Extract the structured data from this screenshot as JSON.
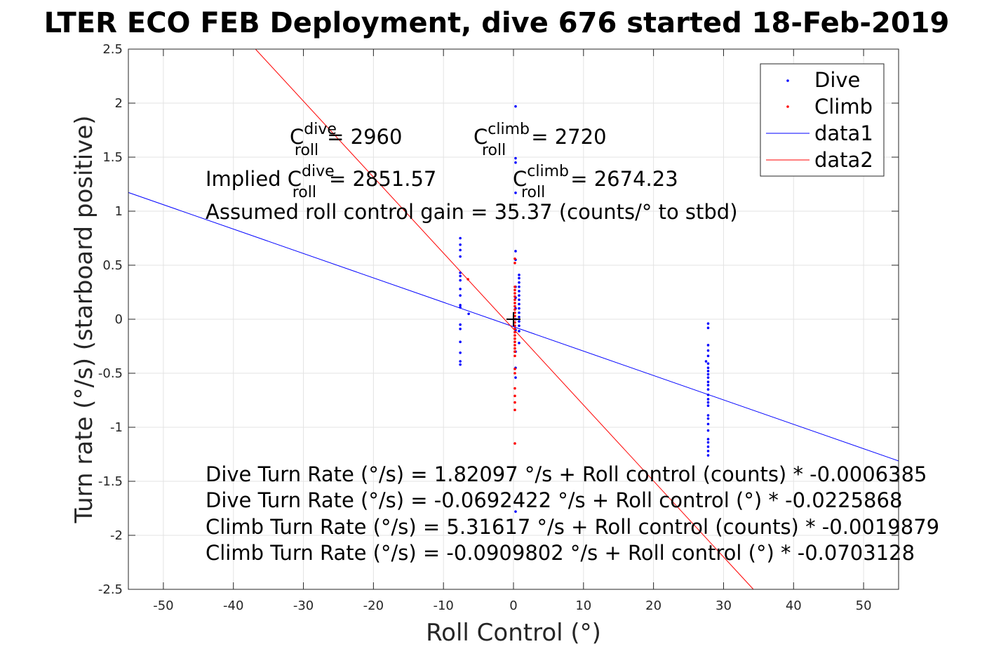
{
  "chart_data": {
    "type": "scatter",
    "title": "LTER ECO FEB Deployment, dive 676 started 18-Feb-2019",
    "xlabel": "Roll Control (°)",
    "ylabel": "Turn rate (°/s) (starboard positive)",
    "xlim": [
      -55,
      55
    ],
    "ylim": [
      -2.5,
      2.5
    ],
    "xticks": [
      -50,
      -40,
      -30,
      -20,
      -10,
      0,
      10,
      20,
      30,
      40,
      50
    ],
    "yticks": [
      -2.5,
      -2,
      -1.5,
      -1,
      -0.5,
      0,
      0.5,
      1,
      1.5,
      2,
      2.5
    ],
    "grid": true,
    "legend_position": "top-right",
    "colors": {
      "dive": "#0000ff",
      "climb": "#ff0000",
      "data1": "#0000ff",
      "data2": "#ff0000",
      "marker": "#000000"
    },
    "series": [
      {
        "name": "Dive",
        "kind": "points",
        "points": [
          [
            -7.6,
            0.75
          ],
          [
            -7.6,
            0.69
          ],
          [
            -7.6,
            0.64
          ],
          [
            -7.6,
            0.58
          ],
          [
            -7.6,
            0.43
          ],
          [
            -7.6,
            0.4
          ],
          [
            -7.6,
            0.36
          ],
          [
            -7.6,
            0.28
          ],
          [
            -7.6,
            0.22
          ],
          [
            -7.6,
            0.13
          ],
          [
            -7.6,
            0.11
          ],
          [
            -7.6,
            -0.05
          ],
          [
            -7.6,
            -0.09
          ],
          [
            -7.6,
            -0.21
          ],
          [
            -7.6,
            -0.31
          ],
          [
            -7.6,
            -0.39
          ],
          [
            -7.6,
            -0.42
          ],
          [
            -6.4,
            0.05
          ],
          [
            0.3,
            1.97
          ],
          [
            0.3,
            1.49
          ],
          [
            0.3,
            1.45
          ],
          [
            0.3,
            1.17
          ],
          [
            0.3,
            0.63
          ],
          [
            0.3,
            0.55
          ],
          [
            0.3,
            0.3
          ],
          [
            0.3,
            0.2
          ],
          [
            0.3,
            0.1
          ],
          [
            0.3,
            0.0
          ],
          [
            0.3,
            -0.1
          ],
          [
            0.3,
            -0.3
          ],
          [
            0.3,
            -0.45
          ],
          [
            0.3,
            -0.54
          ],
          [
            0.3,
            -1.78
          ],
          [
            0.8,
            0.41
          ],
          [
            0.8,
            0.38
          ],
          [
            0.8,
            0.34
          ],
          [
            0.8,
            0.3
          ],
          [
            0.8,
            0.26
          ],
          [
            0.8,
            0.22
          ],
          [
            0.8,
            0.18
          ],
          [
            0.8,
            0.14
          ],
          [
            0.8,
            0.1
          ],
          [
            0.8,
            0.06
          ],
          [
            0.8,
            0.02
          ],
          [
            0.8,
            -0.02
          ],
          [
            0.8,
            -0.06
          ],
          [
            0.8,
            -0.11
          ],
          [
            0.8,
            -0.22
          ],
          [
            27.8,
            -0.04
          ],
          [
            27.8,
            -0.08
          ],
          [
            27.8,
            -0.24
          ],
          [
            27.8,
            -0.29
          ],
          [
            27.8,
            -0.34
          ],
          [
            27.5,
            -0.39
          ],
          [
            27.8,
            -0.41
          ],
          [
            27.8,
            -0.45
          ],
          [
            27.8,
            -0.48
          ],
          [
            27.8,
            -0.51
          ],
          [
            27.8,
            -0.54
          ],
          [
            27.8,
            -0.58
          ],
          [
            27.8,
            -0.61
          ],
          [
            27.8,
            -0.65
          ],
          [
            27.8,
            -0.7
          ],
          [
            27.8,
            -0.74
          ],
          [
            27.8,
            -0.77
          ],
          [
            27.8,
            -0.8
          ],
          [
            27.8,
            -0.89
          ],
          [
            27.8,
            -0.92
          ],
          [
            27.8,
            -0.97
          ],
          [
            27.8,
            -1.03
          ],
          [
            27.8,
            -1.11
          ],
          [
            27.8,
            -1.14
          ],
          [
            27.8,
            -1.18
          ],
          [
            27.8,
            -1.22
          ],
          [
            27.8,
            -1.26
          ]
        ]
      },
      {
        "name": "Climb",
        "kind": "points",
        "points": [
          [
            -6.5,
            0.37
          ],
          [
            0.2,
            0.56
          ],
          [
            0.2,
            0.52
          ],
          [
            0.2,
            0.3
          ],
          [
            0.2,
            0.27
          ],
          [
            0.2,
            0.24
          ],
          [
            0.2,
            0.21
          ],
          [
            0.2,
            0.18
          ],
          [
            0.2,
            0.15
          ],
          [
            0.2,
            0.12
          ],
          [
            0.2,
            0.09
          ],
          [
            0.2,
            0.06
          ],
          [
            0.2,
            0.03
          ],
          [
            0.2,
            0.0
          ],
          [
            0.2,
            -0.03
          ],
          [
            0.2,
            -0.06
          ],
          [
            0.2,
            -0.09
          ],
          [
            0.2,
            -0.12
          ],
          [
            0.2,
            -0.15
          ],
          [
            0.2,
            -0.18
          ],
          [
            0.2,
            -0.21
          ],
          [
            0.2,
            -0.24
          ],
          [
            0.2,
            -0.27
          ],
          [
            0.2,
            -0.3
          ],
          [
            0.2,
            -0.34
          ],
          [
            0.2,
            -0.46
          ],
          [
            0.2,
            -0.5
          ],
          [
            0.2,
            -0.64
          ],
          [
            0.2,
            -0.71
          ],
          [
            0.2,
            -0.77
          ],
          [
            0.2,
            -0.84
          ],
          [
            0.2,
            -1.15
          ]
        ]
      },
      {
        "name": "data1",
        "kind": "line",
        "intercept": -0.0692422,
        "slope": -0.0225868
      },
      {
        "name": "data2",
        "kind": "line",
        "intercept": -0.0909802,
        "slope": -0.0703128
      }
    ],
    "marker_point": [
      0,
      0
    ],
    "annotations": {
      "c_roll_dive": {
        "base": "C",
        "sup": "dive",
        "sub": "roll",
        "value": "= 2960"
      },
      "c_roll_climb": {
        "base": "C",
        "sup": "climb",
        "sub": "roll",
        "value": "= 2720"
      },
      "implied_dive": {
        "prefix": "Implied C",
        "sup": "dive",
        "sub": "roll",
        "value": "= 2851.57"
      },
      "implied_climb": {
        "base": "C",
        "sup": "climb",
        "sub": "roll",
        "value": "= 2674.23"
      },
      "gain": "Assumed roll control gain = 35.37 (counts/° to stbd)",
      "eq1": "Dive Turn Rate (°/s) = 1.82097 °/s + Roll control (counts) * -0.0006385",
      "eq2": "Dive Turn Rate (°/s) = -0.0692422 °/s + Roll control (°) * -0.0225868",
      "eq3": "Climb Turn Rate (°/s) = 5.31617 °/s + Roll control (counts) * -0.0019879",
      "eq4": "Climb Turn Rate (°/s) = -0.0909802 °/s + Roll control (°) * -0.0703128"
    },
    "legend": [
      "Dive",
      "Climb",
      "data1",
      "data2"
    ]
  }
}
